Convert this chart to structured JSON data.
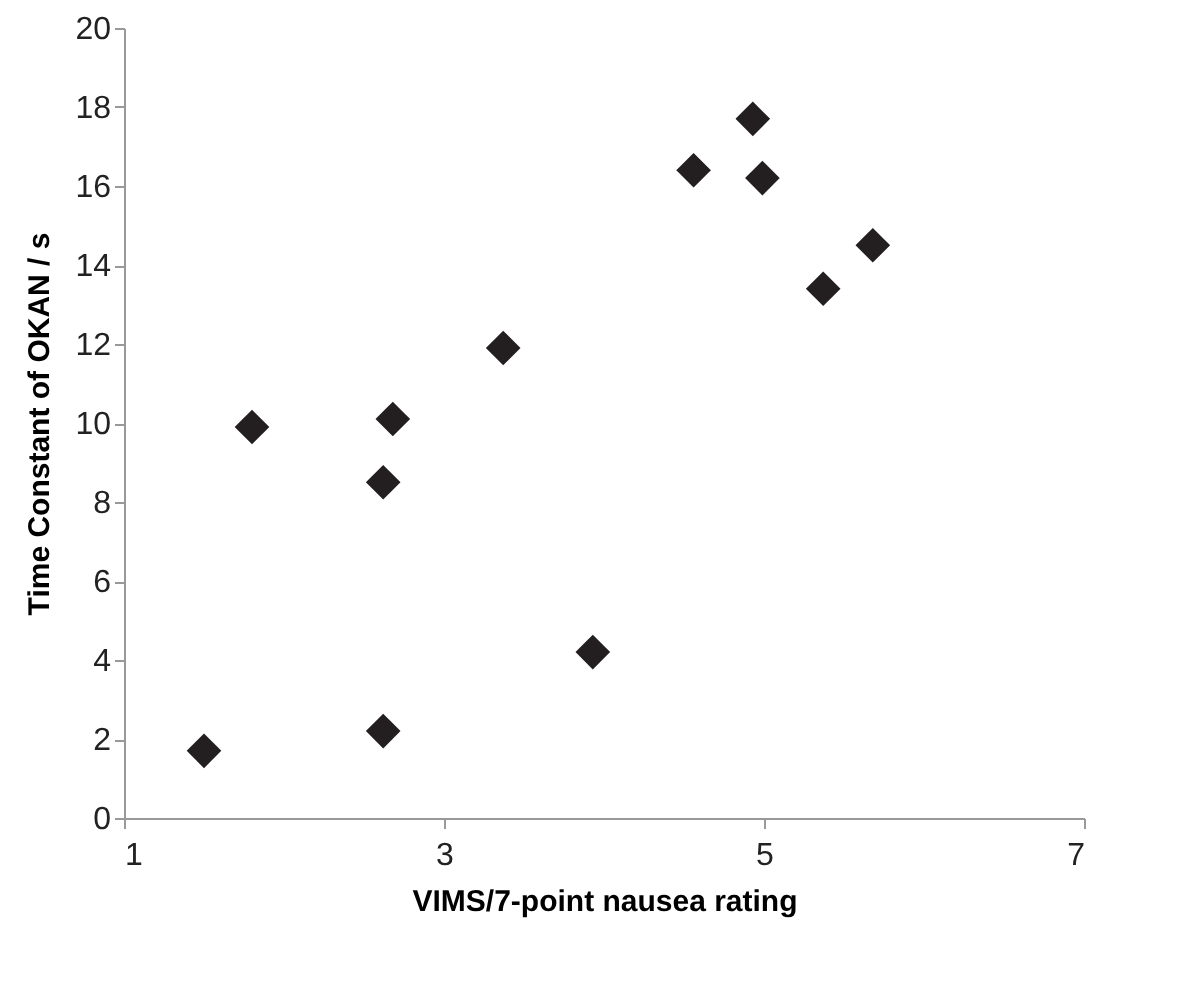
{
  "chart_data": {
    "type": "scatter",
    "xlabel": "VIMS/7-point nausea rating",
    "ylabel": "Time Constant of OKAN / s",
    "x": [
      1.5,
      1.8,
      2.68,
      2.62,
      2.62,
      3.37,
      3.93,
      4.93,
      4.56,
      4.99,
      5.68,
      5.37
    ],
    "series": [
      {
        "color": "#231f20",
        "values": [
          1.7,
          9.9,
          10.1,
          8.5,
          2.2,
          11.9,
          4.2,
          17.7,
          16.4,
          16.2,
          14.5,
          13.4
        ]
      }
    ],
    "xlim": [
      1,
      7
    ],
    "xticks": [
      1,
      3,
      5,
      7
    ],
    "ylim": [
      0,
      20
    ],
    "yticks": [
      0,
      2,
      4,
      6,
      8,
      10,
      12,
      14,
      16,
      18,
      20
    ],
    "marker": "diamond",
    "grid": false
  }
}
